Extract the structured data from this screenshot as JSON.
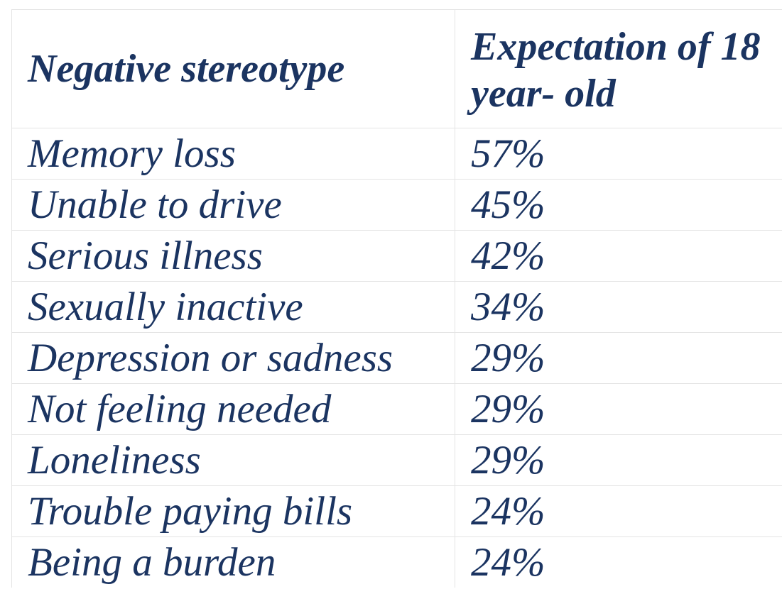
{
  "table": {
    "headers": [
      "Negative stereotype",
      "Expectation of 18 year- old"
    ],
    "rows": [
      {
        "stereotype": "Memory loss",
        "expectation": "57%"
      },
      {
        "stereotype": "Unable to drive",
        "expectation": "45%"
      },
      {
        "stereotype": "Serious illness",
        "expectation": "42%"
      },
      {
        "stereotype": "Sexually inactive",
        "expectation": "34%"
      },
      {
        "stereotype": "Depression or sadness",
        "expectation": "29%"
      },
      {
        "stereotype": "Not feeling needed",
        "expectation": "29%"
      },
      {
        "stereotype": "Loneliness",
        "expectation": "29%"
      },
      {
        "stereotype": "Trouble paying bills",
        "expectation": "24%"
      },
      {
        "stereotype": "Being a burden",
        "expectation": "24%"
      }
    ]
  },
  "colors": {
    "text": "#1b3461",
    "border": "#e4e4e4",
    "background": "#ffffff"
  }
}
